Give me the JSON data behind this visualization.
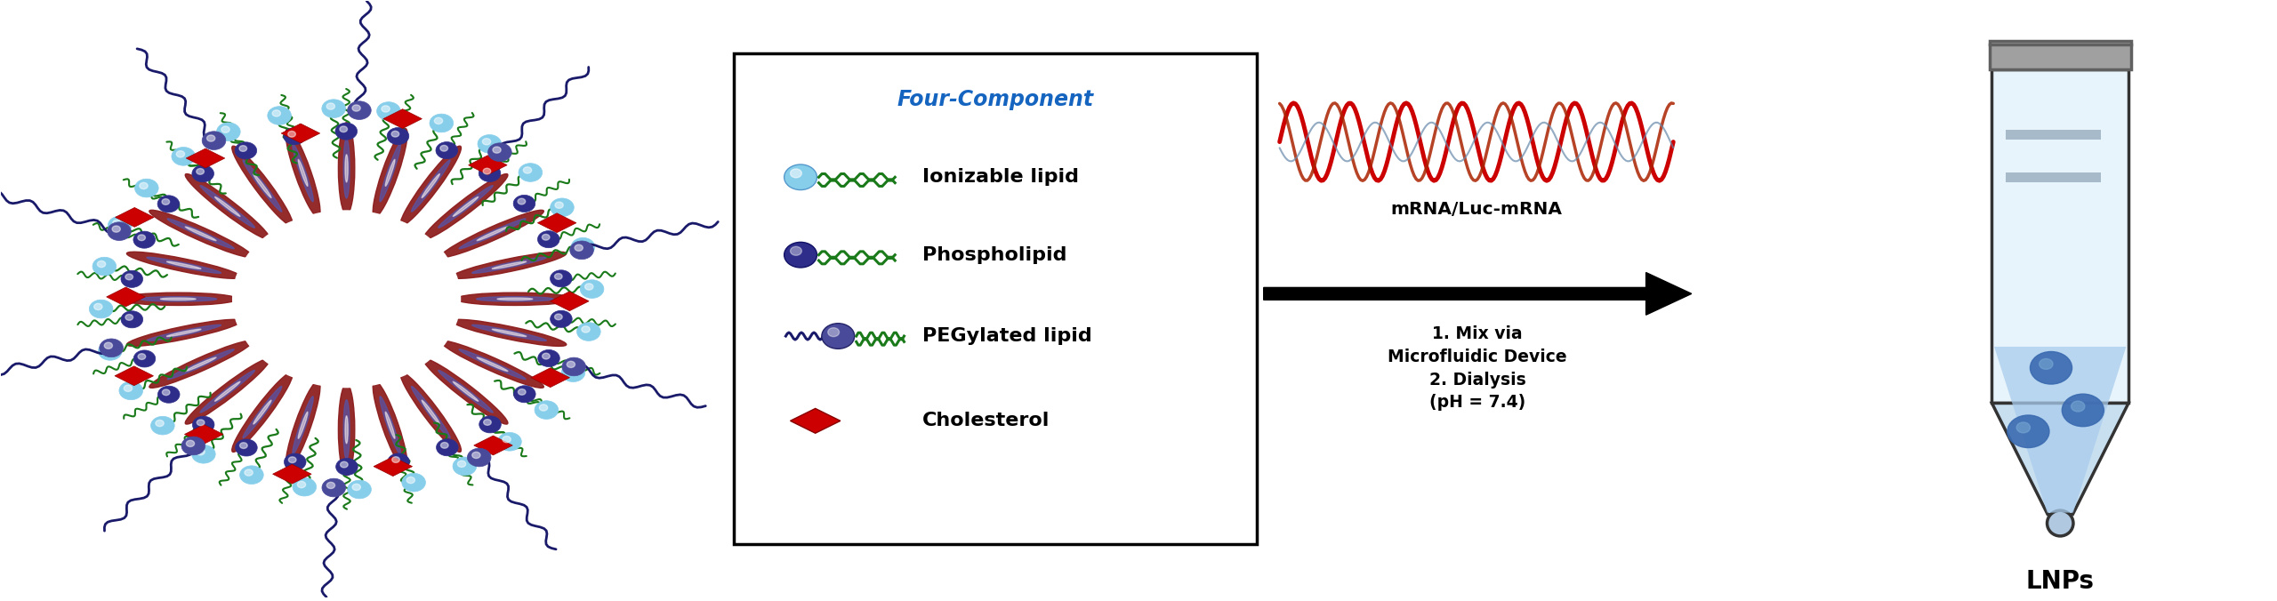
{
  "background_color": "#ffffff",
  "legend_title": "Four-Component",
  "legend_title_color": "#1565C0",
  "legend_items": [
    "Ionizable lipid",
    "Phospholipid",
    "PEGylated lipid",
    "Cholesterol"
  ],
  "lnp_label": "LNPs",
  "lipid_colors": {
    "ionizable_head": "#87CEEB",
    "ionizable_tail": "#1A7A1A",
    "phospho_head": "#2E2E8A",
    "phospho_tail": "#1A7A1A",
    "peg_head": "#4A4A9A",
    "peg_tail": "#1A1A6A",
    "cholesterol": "#CC0000",
    "bilayer_outer": "#8B1A1A",
    "bilayer_inner": "#6B2B8B"
  },
  "tube_colors": {
    "body_light": "#E8F4FC",
    "body_mid": "#C8DFF0",
    "body_dark": "#B0C8E0",
    "cap_color": "#A0A0A0",
    "cap_dark": "#606060",
    "particle": "#3A6AB0",
    "liquid": "#A8CCEC",
    "stripe": "#9BB0C0"
  },
  "mrna_color1": "#CC0000",
  "mrna_color2": "#AA2200",
  "mrna_color3": "#6688AA"
}
